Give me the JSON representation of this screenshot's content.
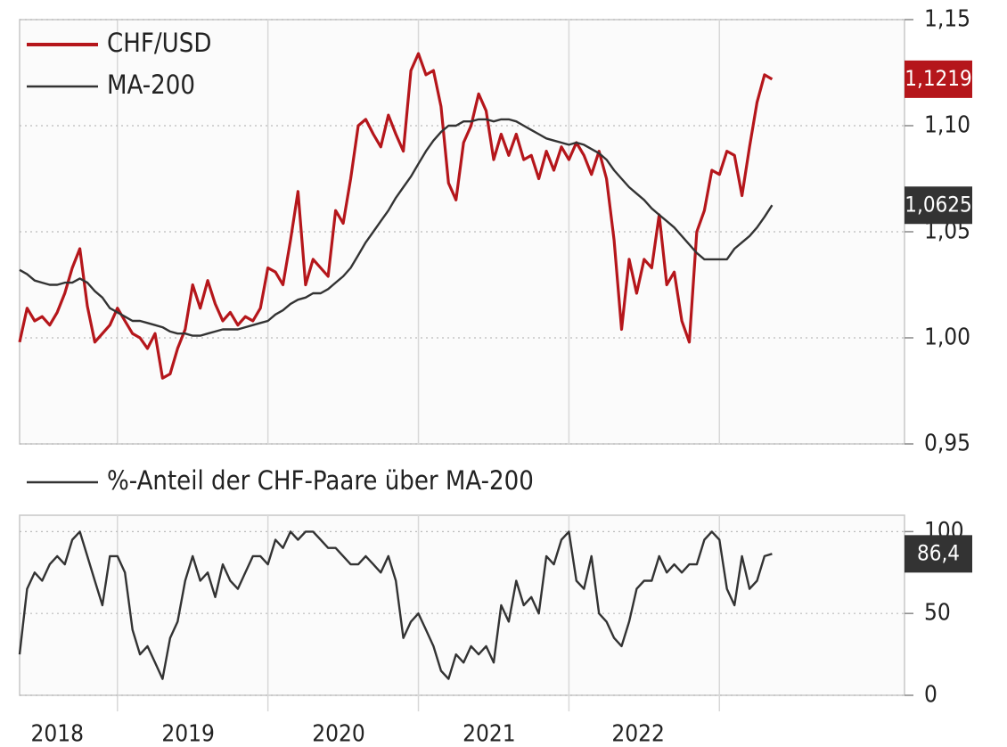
{
  "chart_data": [
    {
      "type": "line",
      "x": [
        2018.35,
        2018.4,
        2018.45,
        2018.5,
        2018.55,
        2018.6,
        2018.65,
        2018.7,
        2018.75,
        2018.8,
        2018.85,
        2018.9,
        2018.95,
        2019.0,
        2019.05,
        2019.1,
        2019.15,
        2019.2,
        2019.25,
        2019.3,
        2019.35,
        2019.4,
        2019.45,
        2019.5,
        2019.55,
        2019.6,
        2019.65,
        2019.7,
        2019.75,
        2019.8,
        2019.85,
        2019.9,
        2019.95,
        2020.0,
        2020.05,
        2020.1,
        2020.15,
        2020.2,
        2020.25,
        2020.3,
        2020.35,
        2020.4,
        2020.45,
        2020.5,
        2020.55,
        2020.6,
        2020.65,
        2020.7,
        2020.75,
        2020.8,
        2020.85,
        2020.9,
        2020.95,
        2021.0,
        2021.05,
        2021.1,
        2021.15,
        2021.2,
        2021.25,
        2021.3,
        2021.35,
        2021.4,
        2021.45,
        2021.5,
        2021.55,
        2021.6,
        2021.65,
        2021.7,
        2021.75,
        2021.8,
        2021.85,
        2021.9,
        2021.95,
        2022.0,
        2022.05,
        2022.1,
        2022.15,
        2022.2,
        2022.25,
        2022.3,
        2022.35,
        2022.4,
        2022.45,
        2022.5,
        2022.55,
        2022.6,
        2022.65,
        2022.7,
        2022.75,
        2022.8,
        2022.85,
        2022.9,
        2022.95,
        2023.0,
        2023.05,
        2023.1,
        2023.15,
        2023.2,
        2023.25,
        2023.3,
        2023.35
      ],
      "series": [
        {
          "name": "CHF/USD",
          "color": "#b5161b",
          "last_label": "1,1219",
          "values": [
            0.998,
            1.014,
            1.008,
            1.01,
            1.006,
            1.012,
            1.021,
            1.033,
            1.042,
            1.015,
            0.998,
            1.002,
            1.006,
            1.014,
            1.008,
            1.002,
            1.0,
            0.995,
            1.002,
            0.981,
            0.983,
            0.995,
            1.004,
            1.025,
            1.014,
            1.027,
            1.016,
            1.008,
            1.012,
            1.006,
            1.01,
            1.008,
            1.014,
            1.033,
            1.031,
            1.025,
            1.046,
            1.069,
            1.025,
            1.037,
            1.033,
            1.029,
            1.06,
            1.054,
            1.075,
            1.1,
            1.103,
            1.096,
            1.09,
            1.105,
            1.096,
            1.088,
            1.126,
            1.134,
            1.124,
            1.126,
            1.109,
            1.073,
            1.065,
            1.092,
            1.1,
            1.115,
            1.107,
            1.084,
            1.096,
            1.086,
            1.096,
            1.084,
            1.086,
            1.075,
            1.088,
            1.079,
            1.09,
            1.084,
            1.092,
            1.086,
            1.077,
            1.088,
            1.075,
            1.046,
            1.004,
            1.037,
            1.021,
            1.037,
            1.033,
            1.058,
            1.025,
            1.031,
            1.008,
            0.998,
            1.05,
            1.06,
            1.079,
            1.077,
            1.088,
            1.086,
            1.067,
            1.09,
            1.111,
            1.124,
            1.1219
          ]
        },
        {
          "name": "MA-200",
          "color": "#333333",
          "last_label": "1,0625",
          "values": [
            1.032,
            1.03,
            1.027,
            1.026,
            1.025,
            1.025,
            1.026,
            1.026,
            1.028,
            1.026,
            1.022,
            1.019,
            1.014,
            1.012,
            1.01,
            1.008,
            1.008,
            1.007,
            1.006,
            1.005,
            1.003,
            1.002,
            1.002,
            1.001,
            1.001,
            1.002,
            1.003,
            1.004,
            1.004,
            1.004,
            1.005,
            1.006,
            1.007,
            1.008,
            1.011,
            1.013,
            1.016,
            1.018,
            1.019,
            1.021,
            1.021,
            1.023,
            1.026,
            1.029,
            1.033,
            1.039,
            1.045,
            1.05,
            1.055,
            1.06,
            1.066,
            1.071,
            1.076,
            1.082,
            1.088,
            1.093,
            1.097,
            1.1,
            1.1,
            1.102,
            1.102,
            1.103,
            1.103,
            1.102,
            1.103,
            1.103,
            1.102,
            1.1,
            1.098,
            1.096,
            1.094,
            1.093,
            1.092,
            1.091,
            1.092,
            1.091,
            1.089,
            1.087,
            1.084,
            1.079,
            1.075,
            1.071,
            1.068,
            1.065,
            1.061,
            1.058,
            1.055,
            1.052,
            1.048,
            1.044,
            1.04,
            1.037,
            1.037,
            1.037,
            1.037,
            1.042,
            1.045,
            1.048,
            1.052,
            1.057,
            1.0625
          ]
        }
      ],
      "ylim": [
        0.95,
        1.15
      ],
      "yticks": [
        {
          "value": 0.95,
          "label": "0,95"
        },
        {
          "value": 1.0,
          "label": "1,00"
        },
        {
          "value": 1.05,
          "label": "1,05"
        },
        {
          "value": 1.1,
          "label": "1,10"
        },
        {
          "value": 1.15,
          "label": "1,15"
        }
      ],
      "xlim": [
        2018.35,
        2024.23
      ],
      "x_dividers": [
        2019,
        2020,
        2021,
        2022,
        2023
      ],
      "grid": true,
      "legend": "top-left"
    },
    {
      "type": "line",
      "x": [
        2018.35,
        2018.4,
        2018.45,
        2018.5,
        2018.55,
        2018.6,
        2018.65,
        2018.7,
        2018.75,
        2018.8,
        2018.85,
        2018.9,
        2018.95,
        2019.0,
        2019.05,
        2019.1,
        2019.15,
        2019.2,
        2019.25,
        2019.3,
        2019.35,
        2019.4,
        2019.45,
        2019.5,
        2019.55,
        2019.6,
        2019.65,
        2019.7,
        2019.75,
        2019.8,
        2019.85,
        2019.9,
        2019.95,
        2020.0,
        2020.05,
        2020.1,
        2020.15,
        2020.2,
        2020.25,
        2020.3,
        2020.35,
        2020.4,
        2020.45,
        2020.5,
        2020.55,
        2020.6,
        2020.65,
        2020.7,
        2020.75,
        2020.8,
        2020.85,
        2020.9,
        2020.95,
        2021.0,
        2021.05,
        2021.1,
        2021.15,
        2021.2,
        2021.25,
        2021.3,
        2021.35,
        2021.4,
        2021.45,
        2021.5,
        2021.55,
        2021.6,
        2021.65,
        2021.7,
        2021.75,
        2021.8,
        2021.85,
        2021.9,
        2021.95,
        2022.0,
        2022.05,
        2022.1,
        2022.15,
        2022.2,
        2022.25,
        2022.3,
        2022.35,
        2022.4,
        2022.45,
        2022.5,
        2022.55,
        2022.6,
        2022.65,
        2022.7,
        2022.75,
        2022.8,
        2022.85,
        2022.9,
        2022.95,
        2023.0,
        2023.05,
        2023.1,
        2023.15,
        2023.2,
        2023.25,
        2023.3,
        2023.35
      ],
      "series": [
        {
          "name": "%-Anteil der CHF-Paare über MA-200",
          "color": "#333333",
          "last_label": "86,4",
          "values": [
            25,
            65,
            75,
            70,
            80,
            85,
            80,
            95,
            100,
            85,
            70,
            55,
            85,
            85,
            75,
            40,
            25,
            30,
            20,
            10,
            35,
            45,
            70,
            85,
            70,
            75,
            60,
            80,
            70,
            65,
            75,
            85,
            85,
            80,
            95,
            90,
            100,
            95,
            100,
            100,
            95,
            90,
            90,
            85,
            80,
            80,
            85,
            80,
            75,
            85,
            70,
            35,
            45,
            50,
            40,
            30,
            15,
            10,
            25,
            20,
            30,
            25,
            30,
            20,
            55,
            45,
            70,
            55,
            60,
            50,
            85,
            80,
            95,
            100,
            70,
            65,
            85,
            50,
            45,
            35,
            30,
            45,
            65,
            70,
            70,
            85,
            75,
            80,
            75,
            80,
            80,
            95,
            100,
            95,
            65,
            55,
            85,
            65,
            70,
            85,
            86.4
          ]
        }
      ],
      "ylim": [
        0,
        110
      ],
      "yticks": [
        0,
        50,
        100
      ],
      "xlim": [
        2018.35,
        2024.23
      ],
      "x_dividers": [
        2019,
        2020,
        2021,
        2022,
        2023
      ],
      "xticks": [
        {
          "value": 2018.6,
          "label": "2018"
        },
        {
          "value": 2019.47,
          "label": "2019"
        },
        {
          "value": 2020.47,
          "label": "2020"
        },
        {
          "value": 2021.47,
          "label": "2021"
        },
        {
          "value": 2022.46,
          "label": "2022"
        }
      ],
      "grid": true,
      "legend": "top-left"
    }
  ]
}
